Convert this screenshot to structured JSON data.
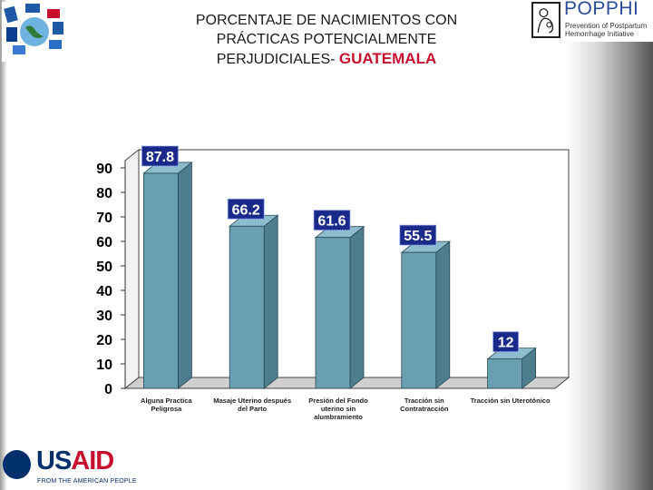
{
  "header": {
    "title_line1": "PORCENTAJE DE NACIMIENTOS CON",
    "title_line2": "PRÁCTICAS POTENCIALMENTE",
    "title_line3_prefix": "PERJUDICIALES-",
    "title_country": "GUATEMALA"
  },
  "logos": {
    "popphi_name": "POPPHI",
    "popphi_line1": "Prevention of Postpartum",
    "popphi_line2": "Hemorrhage Initiative",
    "usaid_us": "US",
    "usaid_aid": "AID",
    "usaid_tagline": "FROM THE AMERICAN PEOPLE"
  },
  "colors": {
    "bar_front": "#6a9fb2",
    "bar_side": "#4d7d8e",
    "bar_top": "#8dbccc",
    "label_bg": "#1a2a8a",
    "usaid_blue": "#002f6c",
    "usaid_red": "#c8102e"
  },
  "chart_data": {
    "type": "bar",
    "title": "PORCENTAJE DE NACIMIENTOS CON PRÁCTICAS POTENCIALMENTE PERJUDICIALES- GUATEMALA",
    "categories": [
      [
        "Alguna Practica",
        "Peligrosa"
      ],
      [
        "Masaje Uterino después",
        "del Parto"
      ],
      [
        "Presión del Fondo",
        "uterino sin",
        "alumbramiento"
      ],
      [
        "Tracción sin",
        "Contratracción"
      ],
      [
        "Tracción sin Uterotónico"
      ]
    ],
    "values": [
      87.8,
      66.2,
      61.6,
      55.5,
      12
    ],
    "value_labels": [
      "87.8",
      "66.2",
      "61.6",
      "55.5",
      "12"
    ],
    "ylim": [
      0,
      90
    ],
    "yticks": [
      "0",
      "10",
      "20",
      "30",
      "40",
      "50",
      "60",
      "70",
      "80",
      "90"
    ],
    "xlabel": "",
    "ylabel": "",
    "grid": false
  }
}
